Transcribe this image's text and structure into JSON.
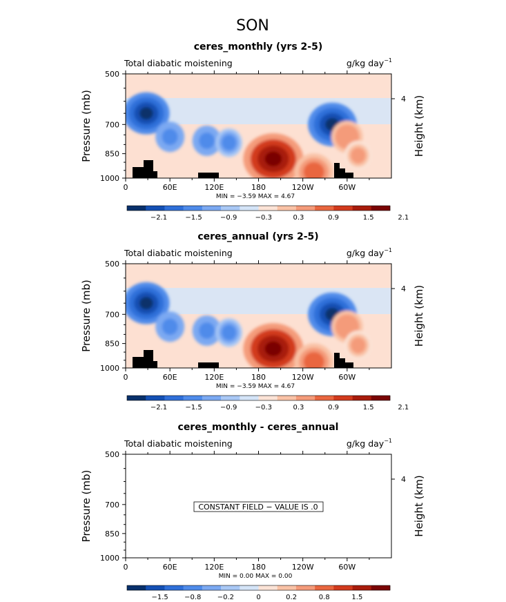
{
  "page_title": "SON",
  "colors": {
    "dark_red": "#8b0000",
    "red": "#d73027",
    "light_red": "#fcbba1",
    "pale_red": "#fde0d2",
    "pale_blue": "#d6e6f7",
    "light_blue": "#9ecae1",
    "blue": "#4a7fe0",
    "dark_blue": "#0a2a8c",
    "topography": "#000000"
  },
  "chart_data": [
    {
      "type": "heatmap",
      "title": "ceres_monthly (yrs 2-5)",
      "variable_label": "Total diabatic moistening",
      "units_label": "g/kg day",
      "units_exp": "−1",
      "ylabel": "Pressure (mb)",
      "ylabel_right": "Height (km)",
      "y_ticks": [
        "500",
        "700",
        "850",
        "1000"
      ],
      "y_right_ticks": [
        "4"
      ],
      "x_ticks": [
        "0",
        "60E",
        "120E",
        "180",
        "120W",
        "60W"
      ],
      "xlim_deg": [
        0,
        360
      ],
      "ylim_mb": [
        1000,
        500
      ],
      "min_max_label": "MIN =   −3.59  MAX =    4.67",
      "colorbar_labels": [
        "−2.1",
        "−1.5",
        "−0.9",
        "−0.3",
        "0.3",
        "0.9",
        "1.5",
        "2.1"
      ],
      "min": -3.59,
      "max": 4.67,
      "features": [
        {
          "lon": 28,
          "p": 650,
          "value": -2.4
        },
        {
          "lon": 60,
          "p": 760,
          "value": -1.0
        },
        {
          "lon": 110,
          "p": 780,
          "value": -1.0
        },
        {
          "lon": 140,
          "p": 790,
          "value": -0.8
        },
        {
          "lon": 200,
          "p": 880,
          "value": 3.5
        },
        {
          "lon": 255,
          "p": 960,
          "value": 1.8
        },
        {
          "lon": 280,
          "p": 700,
          "value": -2.6
        },
        {
          "lon": 300,
          "p": 760,
          "value": 1.2
        },
        {
          "lon": 315,
          "p": 860,
          "value": 0.9
        }
      ]
    },
    {
      "type": "heatmap",
      "title": "ceres_annual (yrs 2-5)",
      "variable_label": "Total diabatic moistening",
      "units_label": "g/kg day",
      "units_exp": "−1",
      "ylabel": "Pressure (mb)",
      "ylabel_right": "Height (km)",
      "y_ticks": [
        "500",
        "700",
        "850",
        "1000"
      ],
      "y_right_ticks": [
        "4"
      ],
      "x_ticks": [
        "0",
        "60E",
        "120E",
        "180",
        "120W",
        "60W"
      ],
      "xlim_deg": [
        0,
        360
      ],
      "ylim_mb": [
        1000,
        500
      ],
      "min_max_label": "MIN =   −3.59  MAX =    4.67",
      "colorbar_labels": [
        "−2.1",
        "−1.5",
        "−0.9",
        "−0.3",
        "0.3",
        "0.9",
        "1.5",
        "2.1"
      ],
      "min": -3.59,
      "max": 4.67,
      "features": [
        {
          "lon": 28,
          "p": 650,
          "value": -2.4
        },
        {
          "lon": 60,
          "p": 760,
          "value": -1.0
        },
        {
          "lon": 110,
          "p": 780,
          "value": -1.0
        },
        {
          "lon": 140,
          "p": 790,
          "value": -0.8
        },
        {
          "lon": 200,
          "p": 880,
          "value": 3.5
        },
        {
          "lon": 255,
          "p": 960,
          "value": 1.8
        },
        {
          "lon": 280,
          "p": 700,
          "value": -2.6
        },
        {
          "lon": 300,
          "p": 760,
          "value": 1.2
        },
        {
          "lon": 315,
          "p": 860,
          "value": 0.9
        }
      ]
    },
    {
      "type": "heatmap",
      "title": "ceres_monthly - ceres_annual",
      "variable_label": "Total diabatic moistening",
      "units_label": "g/kg day",
      "units_exp": "−1",
      "ylabel": "Pressure (mb)",
      "ylabel_right": "Height (km)",
      "y_ticks": [
        "500",
        "700",
        "850",
        "1000"
      ],
      "y_right_ticks": [
        "4"
      ],
      "x_ticks": [
        "0",
        "60E",
        "120E",
        "180",
        "120W",
        "60W"
      ],
      "xlim_deg": [
        0,
        360
      ],
      "ylim_mb": [
        1000,
        500
      ],
      "min_max_label": "MIN =    0.00  MAX =    0.00",
      "colorbar_labels": [
        "−1.5",
        "−0.8",
        "−0.2",
        "0",
        "0.2",
        "0.8",
        "1.5"
      ],
      "min": 0.0,
      "max": 0.0,
      "constant_field_label": "CONSTANT FIELD − VALUE IS .0"
    }
  ]
}
